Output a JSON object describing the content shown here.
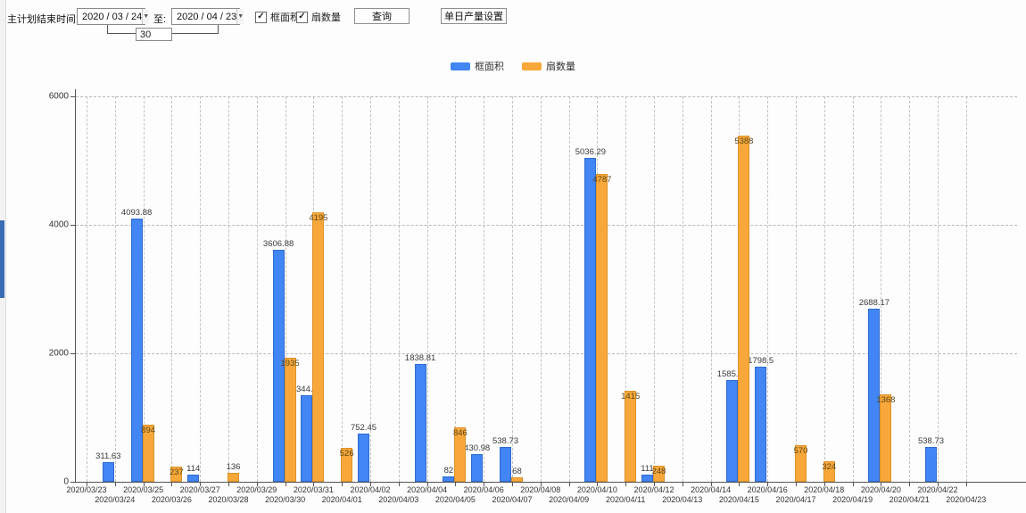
{
  "toolbar": {
    "plan_end_label": "主计划结束时间:",
    "date_from": "2020 / 03 / 24",
    "to_label": "至:",
    "date_to": "2020 / 04 / 23",
    "interval_days": "30",
    "dropdown_glyph": "▼",
    "check_glyph": "✓",
    "checkbox_frame_area": "框面积",
    "checkbox_fan_count": "扇数量",
    "query_button": "查询",
    "daily_output_button": "单日产量设置"
  },
  "colors": {
    "series_blue": "#4285f4",
    "series_blue_border": "#2f6bd0",
    "series_orange": "#f8a83a",
    "series_orange_border": "#dd9228",
    "label_dark": "#3a3a3a",
    "label_on_orange": "#5b4716"
  },
  "chart_data": {
    "type": "bar",
    "title": "",
    "xlabel": "",
    "ylabel": "",
    "ylim": [
      0,
      6000
    ],
    "yticks": [
      0,
      2000,
      4000,
      6000
    ],
    "grid": true,
    "legend_position": "top",
    "categories": [
      "2020/03/23",
      "2020/03/24",
      "2020/03/25",
      "2020/03/26",
      "2020/03/27",
      "2020/03/28",
      "2020/03/29",
      "2020/03/30",
      "2020/03/31",
      "2020/04/01",
      "2020/04/02",
      "2020/04/03",
      "2020/04/04",
      "2020/04/05",
      "2020/04/06",
      "2020/04/07",
      "2020/04/08",
      "2020/04/09",
      "2020/04/10",
      "2020/04/11",
      "2020/04/12",
      "2020/04/13",
      "2020/04/14",
      "2020/04/15",
      "2020/04/16",
      "2020/04/17",
      "2020/04/18",
      "2020/04/19",
      "2020/04/20",
      "2020/04/21",
      "2020/04/22",
      "2020/04/23"
    ],
    "series": [
      {
        "name": "框面积",
        "values": [
          0,
          311.63,
          4093.88,
          0,
          114,
          0,
          0,
          3606.88,
          1344.95,
          0,
          752.45,
          0,
          1838.81,
          82,
          430.98,
          538.73,
          0,
          0,
          5036.29,
          0,
          111,
          0,
          0,
          1585.96,
          1798.5,
          0,
          0,
          0,
          2688.17,
          0,
          538.73,
          0
        ]
      },
      {
        "name": "扇数量",
        "values": [
          0,
          0,
          894,
          237,
          0,
          136,
          0,
          1935,
          4195,
          526,
          0,
          0,
          0,
          846,
          0,
          68,
          0,
          0,
          4787,
          1415,
          248,
          0,
          0,
          5388,
          0,
          570,
          324,
          0,
          1368,
          0,
          0,
          0
        ]
      }
    ]
  }
}
